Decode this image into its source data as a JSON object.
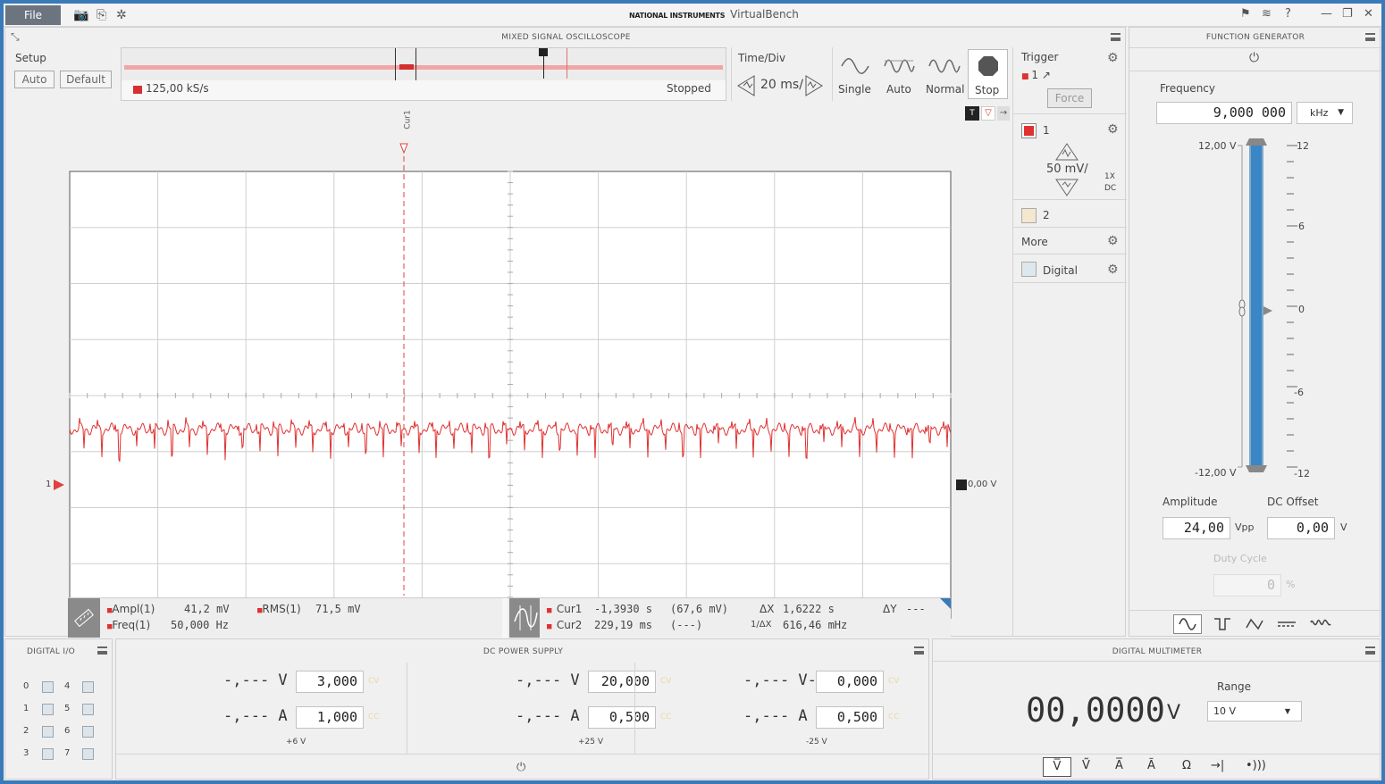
{
  "titlebar": {
    "file_label": "File",
    "brand_small": "NATIONAL INSTRUMENTS",
    "app_name": "VirtualBench"
  },
  "scope": {
    "title": "MIXED SIGNAL OSCILLOSCOPE",
    "setup_label": "Setup",
    "auto_label": "Auto",
    "default_label": "Default",
    "sample_rate": "125,00 kS/s",
    "acq_status": "Stopped",
    "timediv_label": "Time/Div",
    "timediv_value": "20 ms/",
    "modes": [
      "Single",
      "Auto",
      "Normal",
      "Stop"
    ],
    "trigger_label": "Trigger",
    "trigger_source": "1",
    "force_label": "Force",
    "ch1_label": "1",
    "ch1_scale": "50 mV/",
    "ch1_probe": "1X",
    "ch1_coupling": "DC",
    "ch2_label": "2",
    "more_label": "More",
    "digital_label": "Digital",
    "cursor_label": "Cur1",
    "ch_marker": "1",
    "trigger_level": "0,00 V",
    "trace_color": "#e03030",
    "meas": {
      "ampl_label": "Ampl(1)",
      "ampl_value": "41,2 mV",
      "rms_label": "RMS(1)",
      "rms_value": "71,5 mV",
      "freq_label": "Freq(1)",
      "freq_value": "50,000 Hz"
    },
    "cursors": {
      "cur1_label": "Cur1",
      "cur1_value": "-1,3930 s",
      "cur1_y": "(67,6 mV)",
      "cur2_label": "Cur2",
      "cur2_value": "229,19 ms",
      "cur2_y": "(---)",
      "dx_label": "ΔX",
      "dx_value": "1,6222 s",
      "inv_dx_label": "1/ΔX",
      "inv_dx_value": "616,46 mHz",
      "dy_label": "ΔY",
      "dy_value": "---"
    }
  },
  "fgen": {
    "title": "FUNCTION GENERATOR",
    "frequency_label": "Frequency",
    "frequency_value": "9,000 000",
    "frequency_unit": "kHz",
    "scale_top": "12,00 V",
    "scale_bottom": "-12,00 V",
    "ticks": [
      "12",
      "6",
      "0",
      "-6",
      "-12"
    ],
    "amplitude_label": "Amplitude",
    "amplitude_value": "24,00",
    "amplitude_unit": "Vpp",
    "offset_label": "DC Offset",
    "offset_value": "0,00",
    "offset_unit": "V",
    "duty_label": "Duty Cycle",
    "duty_value": "0",
    "duty_unit": "%",
    "level_fraction": 1.0
  },
  "dio": {
    "title": "DIGITAL I/O",
    "left": [
      "0",
      "1",
      "2",
      "3"
    ],
    "right": [
      "4",
      "5",
      "6",
      "7"
    ]
  },
  "psu": {
    "title": "DC POWER SUPPLY",
    "channels": [
      {
        "v_meas": "-,--- V",
        "v_set": "3,000",
        "a_meas": "-,--- A",
        "a_set": "1,000",
        "name": "+6 V"
      },
      {
        "v_meas": "-,--- V",
        "v_set": "20,000",
        "a_meas": "-,--- A",
        "a_set": "0,500",
        "name": "+25 V"
      },
      {
        "v_meas": "-,--- V-",
        "v_set": "0,000",
        "a_meas": "-,--- A",
        "a_set": "0,500",
        "name": "-25 V"
      }
    ],
    "cv": "CV",
    "cc": "CC"
  },
  "dmm": {
    "title": "DIGITAL MULTIMETER",
    "reading": "00,0000",
    "unit": "V",
    "range_label": "Range",
    "range_value": "10 V"
  }
}
